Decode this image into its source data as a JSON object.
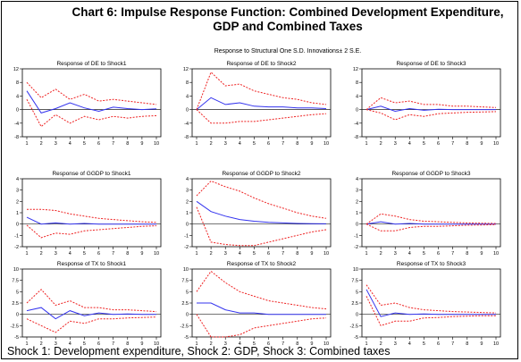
{
  "title_line1": "Chart 6: Impulse Response Function: Combined Development Expenditure,",
  "title_line2": "GDP and Combined Taxes",
  "subtitle": "Response to Structural One S.D. Innovations± 2 S.E.",
  "footnote": "Shock 1: Development expenditure, Shock 2: GDP, Shock 3: Combined taxes",
  "colors": {
    "response": "#3333ee",
    "band": "#ee2222",
    "zero": "#222222",
    "frame": "#000000"
  },
  "chart_data": [
    {
      "type": "line",
      "title": "Response of DE to Shock1",
      "x": [
        1,
        2,
        3,
        4,
        5,
        6,
        7,
        8,
        9,
        10
      ],
      "ylim": [
        -8,
        12
      ],
      "yticks": [
        -8,
        -4,
        0,
        4,
        8,
        12
      ],
      "series": [
        {
          "values": [
            5.5,
            -1.0,
            0.3,
            2.0,
            0.5,
            -0.5,
            0.7,
            0.3,
            0.0,
            0.2
          ]
        },
        {
          "values": [
            8.0,
            3.5,
            6.0,
            3.0,
            4.5,
            2.5,
            3.0,
            2.5,
            2.0,
            1.5
          ]
        },
        {
          "values": [
            3.0,
            -5.0,
            -1.5,
            -4.0,
            -2.0,
            -3.0,
            -2.0,
            -2.5,
            -2.0,
            -1.8
          ]
        }
      ]
    },
    {
      "type": "line",
      "title": "Response of DE to Shock2",
      "x": [
        1,
        2,
        3,
        4,
        5,
        6,
        7,
        8,
        9,
        10
      ],
      "ylim": [
        -8,
        12
      ],
      "yticks": [
        -8,
        -4,
        0,
        4,
        8,
        12
      ],
      "series": [
        {
          "values": [
            0.0,
            3.5,
            1.5,
            2.0,
            1.0,
            0.8,
            0.8,
            0.5,
            0.5,
            0.3
          ]
        },
        {
          "values": [
            0.0,
            11.0,
            7.0,
            7.5,
            5.5,
            4.5,
            3.5,
            3.0,
            2.0,
            1.5
          ]
        },
        {
          "values": [
            0.0,
            -4.0,
            -4.0,
            -3.5,
            -3.5,
            -3.0,
            -2.5,
            -2.0,
            -1.5,
            -1.2
          ]
        }
      ]
    },
    {
      "type": "line",
      "title": "Response of DE to Shock3",
      "x": [
        1,
        2,
        3,
        4,
        5,
        6,
        7,
        8,
        9,
        10
      ],
      "ylim": [
        -8,
        12
      ],
      "yticks": [
        -8,
        -4,
        0,
        4,
        8,
        12
      ],
      "series": [
        {
          "values": [
            0.0,
            1.0,
            -0.5,
            0.3,
            -0.2,
            0.1,
            0.0,
            0.0,
            0.0,
            0.0
          ]
        },
        {
          "values": [
            0.0,
            3.5,
            2.0,
            2.5,
            1.5,
            1.5,
            1.0,
            1.0,
            0.8,
            0.6
          ]
        },
        {
          "values": [
            0.0,
            -1.0,
            -3.0,
            -1.5,
            -2.0,
            -1.2,
            -1.0,
            -0.8,
            -0.7,
            -0.6
          ]
        }
      ]
    },
    {
      "type": "line",
      "title": "Response of GGDP to Shock1",
      "x": [
        1,
        2,
        3,
        4,
        5,
        6,
        7,
        8,
        9,
        10
      ],
      "ylim": [
        -2,
        4
      ],
      "yticks": [
        -2,
        -1,
        0,
        1,
        2,
        3,
        4
      ],
      "series": [
        {
          "values": [
            0.6,
            0.0,
            0.1,
            0.0,
            0.05,
            0.0,
            0.0,
            0.0,
            0.0,
            0.0
          ]
        },
        {
          "values": [
            1.3,
            1.3,
            1.2,
            0.9,
            0.7,
            0.5,
            0.4,
            0.3,
            0.2,
            0.15
          ]
        },
        {
          "values": [
            -0.1,
            -1.2,
            -0.8,
            -0.9,
            -0.6,
            -0.5,
            -0.4,
            -0.3,
            -0.2,
            -0.15
          ]
        }
      ]
    },
    {
      "type": "line",
      "title": "Response of GGDP to Shock2",
      "x": [
        1,
        2,
        3,
        4,
        5,
        6,
        7,
        8,
        9,
        10
      ],
      "ylim": [
        -2,
        4
      ],
      "yticks": [
        -2,
        -1,
        0,
        1,
        2,
        3,
        4
      ],
      "series": [
        {
          "values": [
            2.0,
            1.1,
            0.7,
            0.4,
            0.25,
            0.15,
            0.1,
            0.05,
            0.03,
            0.02
          ]
        },
        {
          "values": [
            2.5,
            3.8,
            3.3,
            2.9,
            2.3,
            1.8,
            1.4,
            1.0,
            0.7,
            0.5
          ]
        },
        {
          "values": [
            1.5,
            -1.6,
            -1.8,
            -1.9,
            -1.9,
            -1.6,
            -1.3,
            -1.0,
            -0.7,
            -0.5
          ]
        }
      ]
    },
    {
      "type": "line",
      "title": "Response of GGDP to Shock3",
      "x": [
        1,
        2,
        3,
        4,
        5,
        6,
        7,
        8,
        9,
        10
      ],
      "ylim": [
        -2,
        4
      ],
      "yticks": [
        -2,
        -1,
        0,
        1,
        2,
        3,
        4
      ],
      "series": [
        {
          "values": [
            0.0,
            0.2,
            0.0,
            0.05,
            0.0,
            0.0,
            0.0,
            0.0,
            0.0,
            0.0
          ]
        },
        {
          "values": [
            0.0,
            0.9,
            0.7,
            0.4,
            0.25,
            0.2,
            0.15,
            0.1,
            0.08,
            0.05
          ]
        },
        {
          "values": [
            0.0,
            -0.6,
            -0.6,
            -0.3,
            -0.2,
            -0.2,
            -0.15,
            -0.1,
            -0.08,
            -0.05
          ]
        }
      ]
    },
    {
      "type": "line",
      "title": "Response of TX to Shock1",
      "x": [
        1,
        2,
        3,
        4,
        5,
        6,
        7,
        8,
        9,
        10
      ],
      "ylim": [
        -5,
        10
      ],
      "yticks": [
        -5,
        -2.5,
        0,
        2.5,
        5,
        7.5,
        10
      ],
      "series": [
        {
          "values": [
            0.8,
            1.5,
            -1.0,
            0.8,
            -0.3,
            0.3,
            0.0,
            0.1,
            0.0,
            0.0
          ]
        },
        {
          "values": [
            2.5,
            5.5,
            2.0,
            3.0,
            1.5,
            1.5,
            1.0,
            1.0,
            0.8,
            0.6
          ]
        },
        {
          "values": [
            -1.0,
            -2.5,
            -4.0,
            -1.5,
            -2.0,
            -1.0,
            -1.0,
            -0.8,
            -0.7,
            -0.6
          ]
        }
      ]
    },
    {
      "type": "line",
      "title": "Response of TX to Shock2",
      "x": [
        1,
        2,
        3,
        4,
        5,
        6,
        7,
        8,
        9,
        10
      ],
      "ylim": [
        -5,
        10
      ],
      "yticks": [
        -5,
        -2.5,
        0,
        2.5,
        5,
        7.5,
        10
      ],
      "series": [
        {
          "values": [
            2.5,
            2.5,
            1.0,
            0.3,
            0.3,
            0.0,
            0.0,
            0.0,
            0.0,
            0.0
          ]
        },
        {
          "values": [
            5.0,
            9.5,
            7.0,
            5.0,
            4.0,
            3.0,
            2.5,
            2.0,
            1.5,
            1.2
          ]
        },
        {
          "values": [
            0.0,
            -5.0,
            -5.0,
            -4.5,
            -3.0,
            -2.5,
            -2.0,
            -1.5,
            -1.0,
            -0.8
          ]
        }
      ]
    },
    {
      "type": "line",
      "title": "Response of TX to Shock3",
      "x": [
        1,
        2,
        3,
        4,
        5,
        6,
        7,
        8,
        9,
        10
      ],
      "ylim": [
        -5,
        10
      ],
      "yticks": [
        -5,
        -2.5,
        0,
        2.5,
        5,
        7.5,
        10
      ],
      "series": [
        {
          "values": [
            5.5,
            -0.5,
            0.3,
            0.0,
            0.1,
            0.0,
            0.0,
            0.0,
            0.0,
            0.0
          ]
        },
        {
          "values": [
            6.5,
            2.0,
            2.5,
            1.5,
            1.0,
            0.8,
            0.6,
            0.5,
            0.4,
            0.3
          ]
        },
        {
          "values": [
            4.0,
            -2.5,
            -1.5,
            -1.5,
            -0.8,
            -0.7,
            -0.5,
            -0.4,
            -0.3,
            -0.3
          ]
        }
      ]
    }
  ]
}
